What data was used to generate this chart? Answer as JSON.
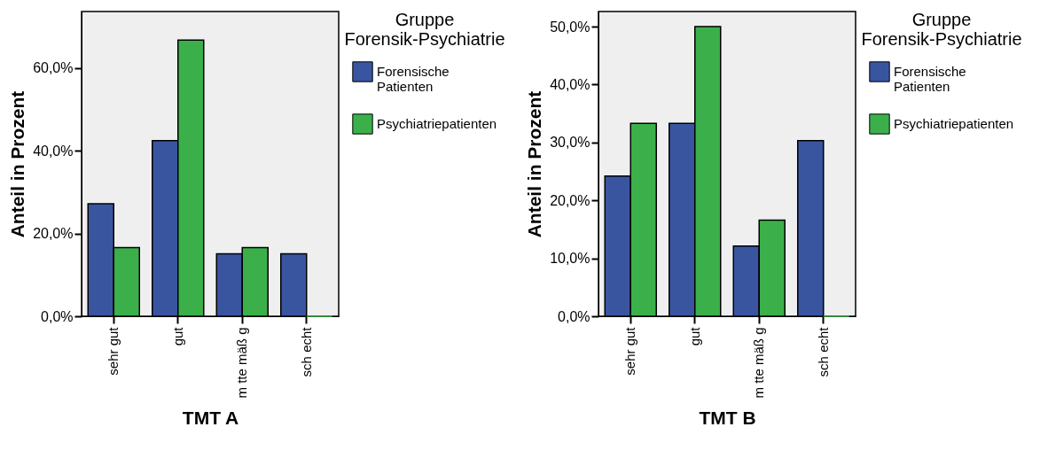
{
  "chart_data": [
    {
      "type": "bar",
      "xlabel": "TMT A",
      "ylabel": "Anteil in Prozent",
      "legend_title": "Gruppe Forensik-Psychiatrie",
      "legend": "top right",
      "grid": false,
      "categories": [
        "sehr gut",
        "gut",
        "m tte mäß g",
        "sch echt"
      ],
      "ylim": [
        0,
        73.7
      ],
      "yticks": [
        {
          "value": 0,
          "label": "0,0%"
        },
        {
          "value": 20,
          "label": "20,0%"
        },
        {
          "value": 40,
          "label": "40,0%"
        },
        {
          "value": 60,
          "label": "60,0%"
        }
      ],
      "series": [
        {
          "name": "Forensische Patienten",
          "color": "#3a55a0",
          "values": [
            27.2,
            42.5,
            15.1,
            15.1
          ]
        },
        {
          "name": "Psychiatriepatienten",
          "color": "#3bb04a",
          "values": [
            16.6,
            66.8,
            16.6,
            0
          ]
        }
      ]
    },
    {
      "type": "bar",
      "xlabel": "TMT B",
      "ylabel": "Anteil in Prozent",
      "legend_title": "Gruppe Forensik-Psychiatrie",
      "legend": "top right",
      "grid": false,
      "categories": [
        "sehr gut",
        "gut",
        "m tte mäß g",
        "sch echt"
      ],
      "ylim": [
        0,
        52.6
      ],
      "yticks": [
        {
          "value": 0,
          "label": "0,0%"
        },
        {
          "value": 10,
          "label": "10,0%"
        },
        {
          "value": 20,
          "label": "20,0%"
        },
        {
          "value": 30,
          "label": "30,0%"
        },
        {
          "value": 40,
          "label": "40,0%"
        },
        {
          "value": 50,
          "label": "50,0%"
        }
      ],
      "series": [
        {
          "name": "Forensische Patienten",
          "color": "#3a55a0",
          "values": [
            24.2,
            33.3,
            12.1,
            30.3
          ]
        },
        {
          "name": "Psychiatriepatienten",
          "color": "#3bb04a",
          "values": [
            33.3,
            50,
            16.6,
            0
          ]
        }
      ]
    }
  ]
}
